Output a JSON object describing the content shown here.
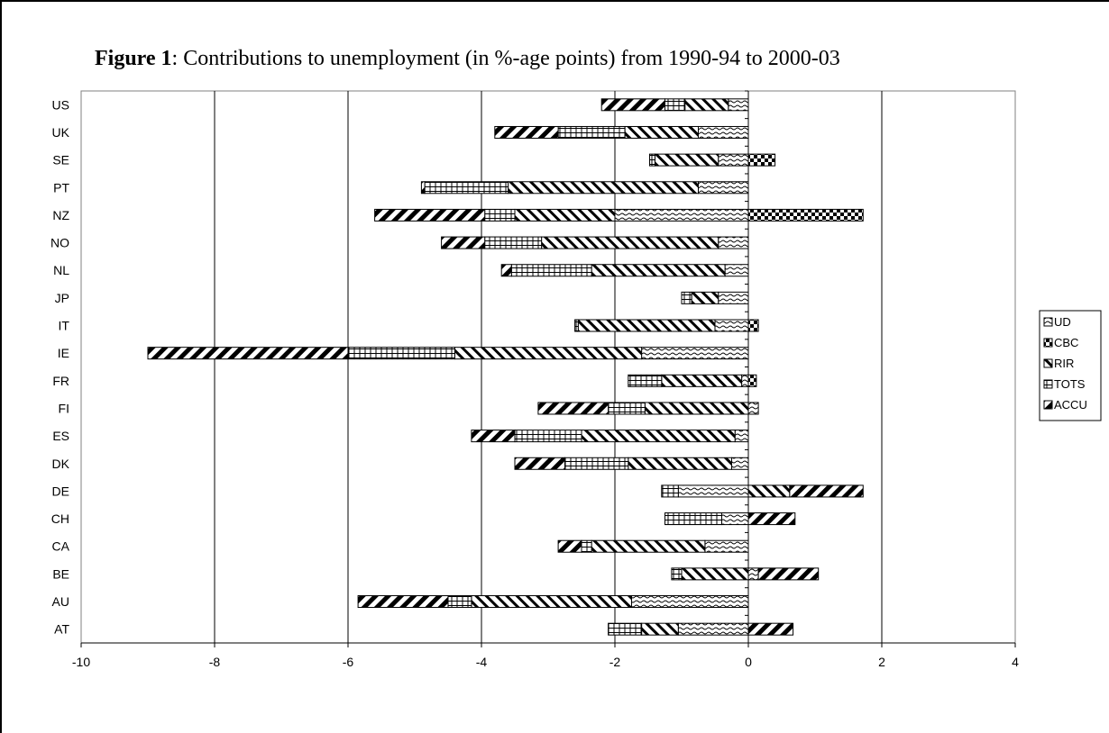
{
  "figure": {
    "title_bold": "Figure 1",
    "title_rest": ": Contributions to unemployment (in %-age points) from 1990-94 to 2000-03"
  },
  "chart_data": {
    "type": "bar",
    "orientation": "horizontal",
    "stacked": true,
    "title": "Figure 1: Contributions to unemployment (in %-age points) from 1990-94 to 2000-03",
    "xlabel": "",
    "ylabel": "",
    "xlim": [
      -10,
      4
    ],
    "x_ticks": [
      -10,
      -8,
      -6,
      -4,
      -2,
      0,
      2,
      4
    ],
    "grid": "vertical major gridlines",
    "legend_position": "right",
    "categories": [
      "US",
      "UK",
      "SE",
      "PT",
      "NZ",
      "NO",
      "NL",
      "JP",
      "IT",
      "IE",
      "FR",
      "FI",
      "ES",
      "DK",
      "DE",
      "CH",
      "CA",
      "BE",
      "AU",
      "AT"
    ],
    "series": [
      {
        "name": "UD",
        "pattern": "wave",
        "values": [
          -0.3,
          -0.75,
          -0.45,
          -0.75,
          -2.0,
          -0.45,
          -0.35,
          -0.45,
          -0.5,
          -1.6,
          -0.1,
          0.15,
          -0.2,
          -0.25,
          -1.05,
          -0.4,
          -0.65,
          0.15,
          -1.75,
          -1.05
        ]
      },
      {
        "name": "CBC",
        "pattern": "checker",
        "values": [
          0,
          0,
          0.4,
          0,
          1.72,
          0,
          0,
          0,
          0.15,
          0,
          0.12,
          0,
          0,
          0,
          0,
          0,
          0,
          0,
          0,
          0
        ]
      },
      {
        "name": "RIR",
        "pattern": "backdiagonal",
        "values": [
          -0.65,
          -1.1,
          -0.95,
          -2.85,
          -1.5,
          -2.65,
          -2.0,
          -0.4,
          -2.05,
          -2.8,
          -1.2,
          -1.55,
          -2.3,
          -1.55,
          0.62,
          0,
          -1.7,
          -1.0,
          -2.4,
          -0.55
        ]
      },
      {
        "name": "TOTS",
        "pattern": "grid",
        "values": [
          -0.3,
          -1.0,
          -0.08,
          -1.25,
          -0.45,
          -0.85,
          -1.2,
          -0.15,
          -0.05,
          -1.6,
          -0.5,
          -0.55,
          -1.0,
          -0.95,
          -0.25,
          -0.85,
          -0.15,
          -0.15,
          -0.35,
          -0.5
        ]
      },
      {
        "name": "ACCU",
        "pattern": "diagonal",
        "values": [
          -0.95,
          -0.95,
          0,
          -0.05,
          -1.65,
          -0.65,
          -0.15,
          0,
          0,
          -3.0,
          0,
          -1.05,
          -0.65,
          -0.75,
          1.1,
          0.7,
          -0.35,
          0.9,
          -1.35,
          0.67
        ]
      }
    ]
  }
}
